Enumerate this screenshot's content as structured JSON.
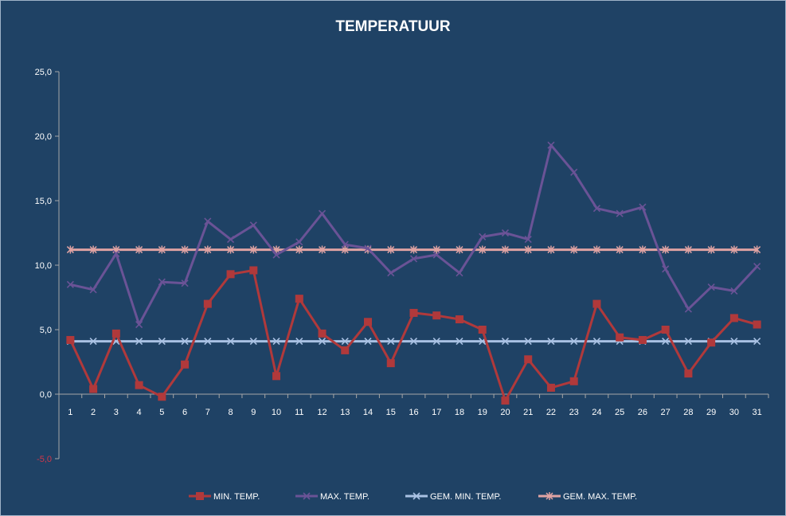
{
  "chart_data": {
    "type": "line",
    "title": "TEMPERATUUR",
    "x": [
      "1",
      "2",
      "3",
      "4",
      "5",
      "6",
      "7",
      "8",
      "9",
      "10",
      "11",
      "12",
      "13",
      "14",
      "15",
      "16",
      "17",
      "18",
      "19",
      "20",
      "21",
      "22",
      "23",
      "24",
      "25",
      "26",
      "27",
      "28",
      "29",
      "30",
      "31"
    ],
    "y_ticks": [
      "25,0",
      "20,0",
      "15,0",
      "10,0",
      "5,0",
      "0,0",
      "-5,0"
    ],
    "y_tick_values": [
      25,
      20,
      15,
      10,
      5,
      0,
      -5
    ],
    "ylim": [
      -5,
      25
    ],
    "grid": false,
    "legend_position": "bottom",
    "series": [
      {
        "name": "MIN. TEMP.",
        "color": "#b0393b",
        "marker": "square",
        "values": [
          4.2,
          0.4,
          4.7,
          0.7,
          -0.2,
          2.3,
          7.0,
          9.3,
          9.6,
          1.4,
          7.4,
          4.7,
          3.4,
          5.6,
          2.4,
          6.3,
          6.1,
          5.8,
          5.0,
          -0.5,
          2.7,
          0.5,
          1.0,
          7.0,
          4.4,
          4.2,
          5.0,
          1.6,
          4.0,
          5.9,
          5.4
        ]
      },
      {
        "name": "MAX. TEMP.",
        "color": "#6a5396",
        "marker": "x",
        "values": [
          8.5,
          8.1,
          10.9,
          5.4,
          8.7,
          8.6,
          13.4,
          12.0,
          13.1,
          10.8,
          11.8,
          14.0,
          11.6,
          11.3,
          9.4,
          10.5,
          10.8,
          9.4,
          12.2,
          12.5,
          12.0,
          19.3,
          17.2,
          14.4,
          14.0,
          14.5,
          9.7,
          6.6,
          8.3,
          8.0,
          9.9
        ]
      },
      {
        "name": "GEM. MIN. TEMP.",
        "color": "#a9c1e3",
        "marker": "x",
        "values": [
          4.1,
          4.1,
          4.1,
          4.1,
          4.1,
          4.1,
          4.1,
          4.1,
          4.1,
          4.1,
          4.1,
          4.1,
          4.1,
          4.1,
          4.1,
          4.1,
          4.1,
          4.1,
          4.1,
          4.1,
          4.1,
          4.1,
          4.1,
          4.1,
          4.1,
          4.1,
          4.1,
          4.1,
          4.1,
          4.1,
          4.1
        ]
      },
      {
        "name": "GEM. MAX. TEMP.",
        "color": "#e0a3a3",
        "marker": "asterisk",
        "values": [
          11.2,
          11.2,
          11.2,
          11.2,
          11.2,
          11.2,
          11.2,
          11.2,
          11.2,
          11.2,
          11.2,
          11.2,
          11.2,
          11.2,
          11.2,
          11.2,
          11.2,
          11.2,
          11.2,
          11.2,
          11.2,
          11.2,
          11.2,
          11.2,
          11.2,
          11.2,
          11.2,
          11.2,
          11.2,
          11.2,
          11.2
        ]
      }
    ]
  }
}
